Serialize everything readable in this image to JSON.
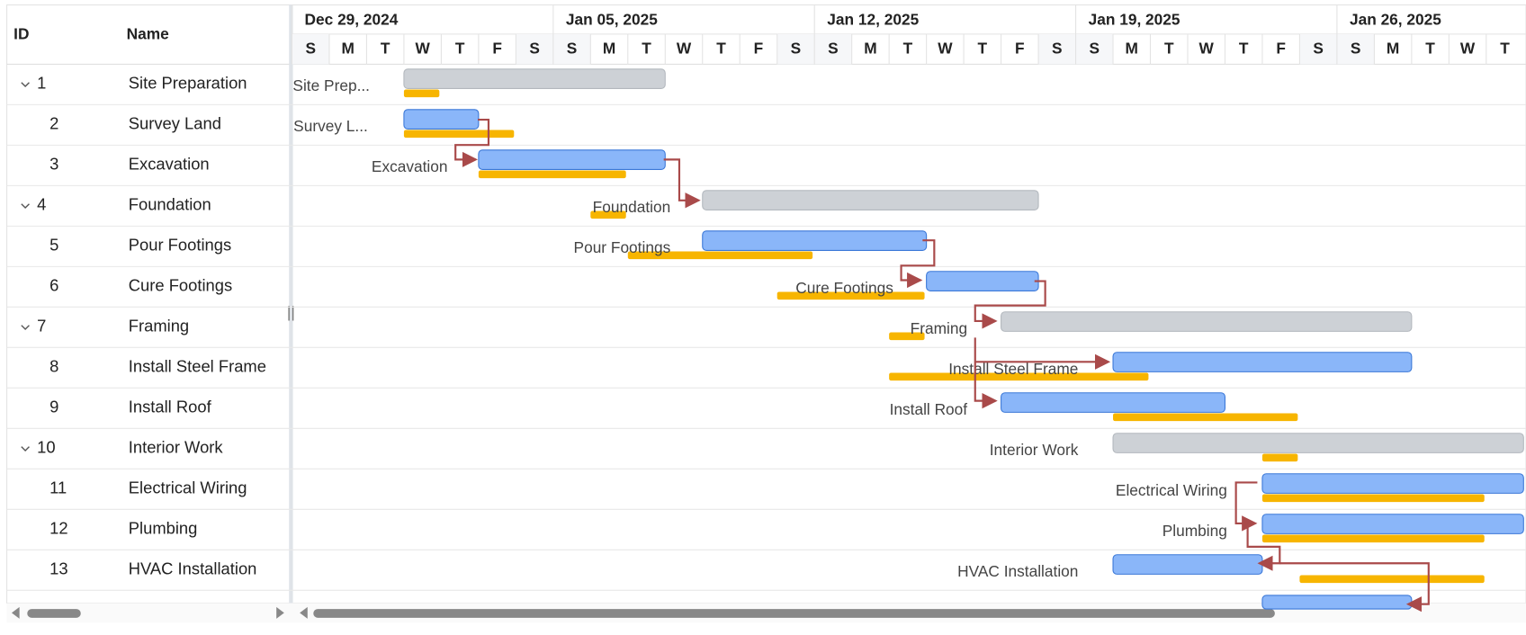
{
  "grid": {
    "columns": [
      "ID",
      "Name"
    ],
    "rows": [
      {
        "id": 1,
        "name": "Site Preparation",
        "bar_label": "Site Prep..."
      },
      {
        "id": 2,
        "name": "Survey Land",
        "bar_label": "Survey L..."
      },
      {
        "id": 3,
        "name": "Excavation",
        "bar_label": "Excavation"
      },
      {
        "id": 4,
        "name": "Foundation",
        "bar_label": "Foundation"
      },
      {
        "id": 5,
        "name": "Pour Footings",
        "bar_label": "Pour Footings"
      },
      {
        "id": 6,
        "name": "Cure Footings",
        "bar_label": "Cure Footings"
      },
      {
        "id": 7,
        "name": "Framing",
        "bar_label": "Framing"
      },
      {
        "id": 8,
        "name": "Install Steel Frame",
        "bar_label": "Install Steel Frame"
      },
      {
        "id": 9,
        "name": "Install Roof",
        "bar_label": "Install Roof"
      },
      {
        "id": 10,
        "name": "Interior Work",
        "bar_label": "Interior Work"
      },
      {
        "id": 11,
        "name": "Electrical Wiring",
        "bar_label": "Electrical Wiring"
      },
      {
        "id": 12,
        "name": "Plumbing",
        "bar_label": "Plumbing"
      },
      {
        "id": 13,
        "name": "HVAC Installation",
        "bar_label": "HVAC Installation"
      }
    ]
  },
  "timeline": {
    "weeks": [
      "Dec 29, 2024",
      "Jan 05, 2025",
      "Jan 12, 2025",
      "Jan 19, 2025",
      "Jan 26, 2025"
    ],
    "days": [
      "S",
      "M",
      "T",
      "W",
      "T",
      "F",
      "S",
      "S",
      "M",
      "T",
      "W",
      "T",
      "F",
      "S",
      "S",
      "M",
      "T",
      "W",
      "T",
      "F",
      "S",
      "S",
      "M",
      "T",
      "W",
      "T",
      "F",
      "S",
      "S",
      "M",
      "T",
      "W",
      "T"
    ]
  }
}
